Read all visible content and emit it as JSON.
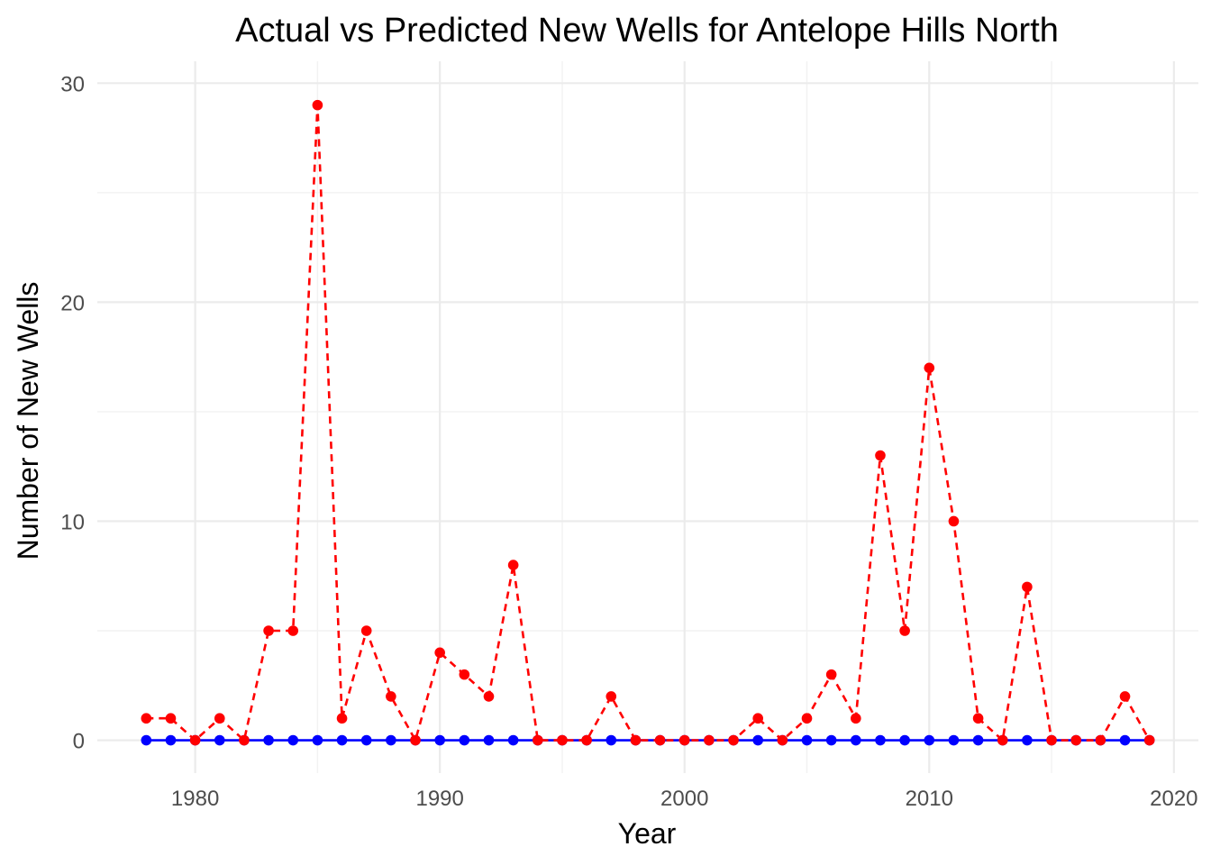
{
  "chart_data": {
    "type": "line",
    "title": "Actual vs Predicted New Wells for Antelope Hills  North",
    "xlabel": "Year",
    "ylabel": "Number of New Wells",
    "xlim": [
      1976,
      2021
    ],
    "ylim": [
      -1.5,
      31
    ],
    "x_ticks": [
      1980,
      1990,
      2000,
      2010,
      2020
    ],
    "y_ticks": [
      0,
      10,
      20,
      30
    ],
    "grid": true,
    "legend": "none",
    "x": [
      1978,
      1979,
      1980,
      1981,
      1982,
      1983,
      1984,
      1985,
      1986,
      1987,
      1988,
      1989,
      1990,
      1991,
      1992,
      1993,
      1994,
      1995,
      1996,
      1997,
      1998,
      1999,
      2000,
      2001,
      2002,
      2003,
      2004,
      2005,
      2006,
      2007,
      2008,
      2009,
      2010,
      2011,
      2012,
      2013,
      2014,
      2015,
      2016,
      2017,
      2018,
      2019
    ],
    "series": [
      {
        "color": "#0000ff",
        "line_style": "solid",
        "values": [
          0,
          0,
          0,
          0,
          0,
          0,
          0,
          0,
          0,
          0,
          0,
          0,
          0,
          0,
          0,
          0,
          0,
          0,
          0,
          0,
          0,
          0,
          0,
          0,
          0,
          0,
          0,
          0,
          0,
          0,
          0,
          0,
          0,
          0,
          0,
          0,
          0,
          0,
          0,
          0,
          0,
          0
        ]
      },
      {
        "color": "#ff0000",
        "line_style": "dashed",
        "values": [
          1,
          1,
          0,
          1,
          0,
          5,
          5,
          29,
          1,
          5,
          2,
          0,
          4,
          3,
          2,
          8,
          0,
          0,
          0,
          2,
          0,
          0,
          0,
          0,
          0,
          1,
          0,
          1,
          3,
          1,
          13,
          5,
          17,
          10,
          1,
          0,
          7,
          0,
          0,
          0,
          2,
          0
        ]
      }
    ]
  }
}
